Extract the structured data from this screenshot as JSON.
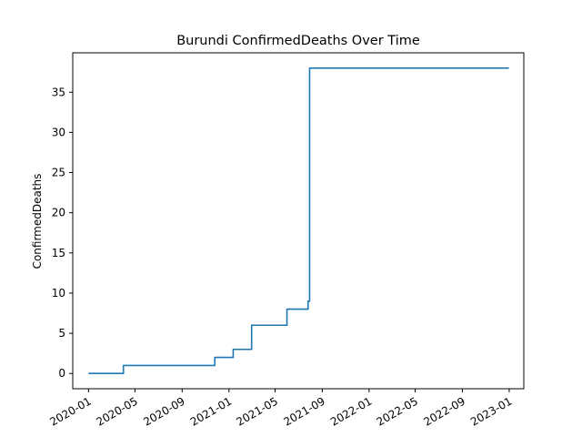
{
  "chart_data": {
    "type": "line",
    "title": "Burundi  ConfirmedDeaths Over Time",
    "xlabel": "",
    "ylabel": "ConfirmedDeaths",
    "line_color": "#1f77b4",
    "x_ticks": [
      "2020-01",
      "2020-05",
      "2020-09",
      "2021-01",
      "2021-05",
      "2021-09",
      "2022-01",
      "2022-05",
      "2022-09",
      "2023-01"
    ],
    "y_ticks": [
      0,
      5,
      10,
      15,
      20,
      25,
      30,
      35
    ],
    "xlim": [
      "2019-11-21",
      "2023-02-08"
    ],
    "ylim": [
      -1.9,
      39.9
    ],
    "grid": false,
    "series": [
      {
        "step": "post",
        "x": [
          "2020-01-01",
          "2020-04-01",
          "2020-11-25",
          "2021-01-12",
          "2021-03-01",
          "2021-06-01",
          "2021-07-26",
          "2021-07-30",
          "2022-12-31"
        ],
        "values": [
          0,
          1,
          2,
          3,
          6,
          8,
          9,
          38,
          38
        ]
      }
    ]
  }
}
